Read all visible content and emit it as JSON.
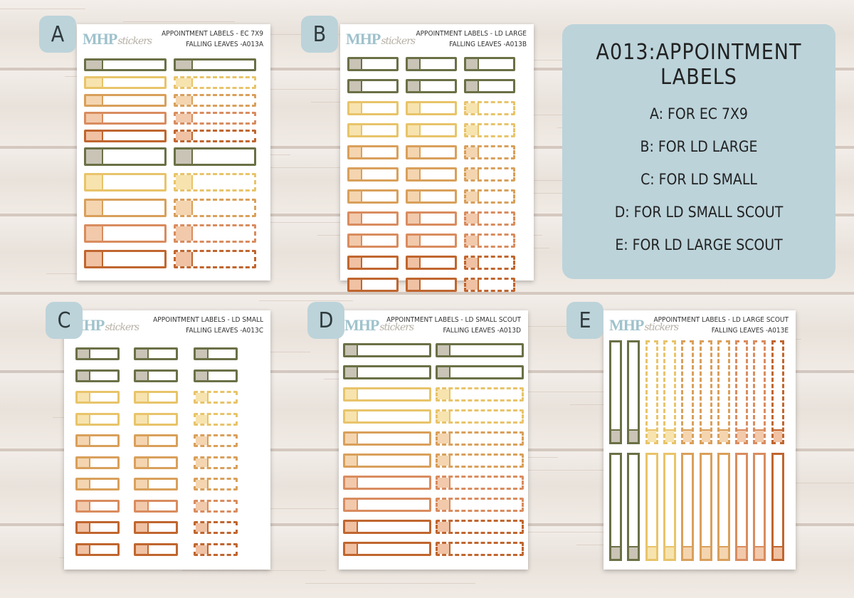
{
  "info_card": {
    "title": "A013:APPOINTMENT LABELS",
    "lines": [
      "A: FOR EC 7X9",
      "B: FOR LD LARGE",
      "C: FOR LD SMALL",
      "D: FOR LD SMALL SCOUT",
      "E: FOR LD LARGE SCOUT"
    ]
  },
  "colors": {
    "olive": "#6b7046",
    "olive_fill": "#c9c4b6",
    "yellow": "#e8c46a",
    "yellow_fill": "#f7e3ae",
    "tan": "#d9a05b",
    "tan_fill": "#f4d5b0",
    "peach": "#d98c5f",
    "peach_fill": "#f2c9ab",
    "rust": "#c0662f",
    "rust_fill": "#f0c1a3",
    "badge": "#bcd3da"
  },
  "sheets": [
    {
      "badge": "A",
      "brand": "MHP",
      "brand_small": "stickers",
      "line1": "APPOINTMENT LABELS - EC 7X9",
      "line2": "FALLING LEAVES -A013A"
    },
    {
      "badge": "B",
      "brand": "MHP",
      "brand_small": "stickers",
      "line1": "APPOINTMENT LABELS - LD LARGE",
      "line2": "FALLING LEAVES -A013B"
    },
    {
      "badge": "C",
      "brand": "MHP",
      "brand_small": "stickers",
      "line1": "APPOINTMENT LABELS - LD SMALL",
      "line2": "FALLING LEAVES -A013C"
    },
    {
      "badge": "D",
      "brand": "MHP",
      "brand_small": "stickers",
      "line1": "APPOINTMENT LABELS - LD SMALL SCOUT",
      "line2": "FALLING LEAVES -A013D"
    },
    {
      "badge": "E",
      "brand": "MHP",
      "brand_small": "stickers",
      "line1": "APPOINTMENT LABELS - LD LARGE SCOUT",
      "line2": "FALLING LEAVES -A013E"
    }
  ]
}
